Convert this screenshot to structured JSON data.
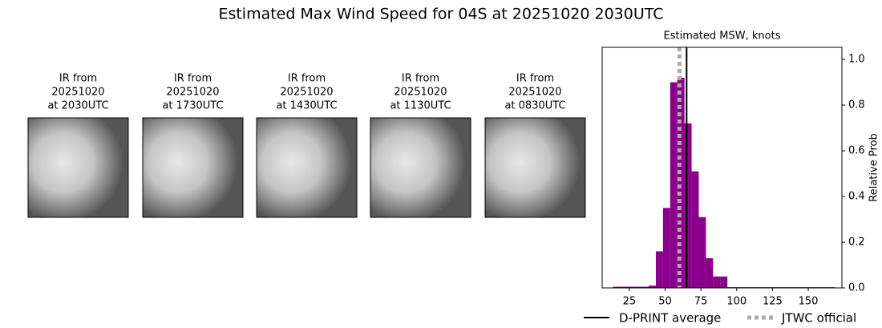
{
  "title": "Estimated Max Wind Speed for 04S at 20251020 2030UTC",
  "panels": [
    {
      "line1": "IR from",
      "line2": "20251020",
      "line3": "at 2030UTC"
    },
    {
      "line1": "IR from",
      "line2": "20251020",
      "line3": "at 1730UTC"
    },
    {
      "line1": "IR from",
      "line2": "20251020",
      "line3": "at 1430UTC"
    },
    {
      "line1": "IR from",
      "line2": "20251020",
      "line3": "at 1130UTC"
    },
    {
      "line1": "IR from",
      "line2": "20251020",
      "line3": "at 0830UTC"
    }
  ],
  "chart_data": {
    "type": "histogram",
    "title": "Estimated MSW, knots",
    "y_label": "Relative Prob",
    "bins": [
      13.5,
      18.5,
      23.5,
      28.5,
      33.5,
      38.5,
      43.5,
      48.5,
      53.5,
      58.5,
      63.5,
      68.5,
      73.5,
      78.5,
      83.5,
      88.5,
      93.5,
      98.5,
      103.5,
      108.5,
      113.5,
      118.5,
      123.5,
      128.5,
      133.5,
      138.5,
      143.5,
      148.5,
      153.5,
      158.5,
      163.5,
      168.5
    ],
    "values": [
      0.005,
      0.005,
      0.005,
      0.005,
      0.005,
      0.01,
      0.16,
      0.35,
      0.9,
      0.92,
      0.72,
      0.51,
      0.31,
      0.13,
      0.05,
      0.05,
      0.003,
      0.003,
      0.003,
      0.003,
      0.003,
      0.003,
      0.003,
      0.003,
      0.003,
      0.003,
      0.003,
      0.003,
      0.003,
      0.003,
      0.003
    ],
    "color": "#8b008b",
    "xlim": [
      6,
      173.5
    ],
    "ylim": [
      0,
      1.053
    ],
    "xticks": [
      25,
      50,
      75,
      100,
      125,
      150
    ],
    "yticks": [
      {
        "value": 0,
        "label": "0.0"
      },
      0.2,
      0.4,
      0.6,
      0.8,
      {
        "value": 1,
        "label": "1.0"
      }
    ],
    "lines": [
      {
        "name": "D-PRINT average",
        "value": 65,
        "color": "#000000",
        "dashed": false
      },
      {
        "name": "JTWC official",
        "value": 60,
        "color": "#aaaaaa",
        "dashed": true
      }
    ]
  }
}
